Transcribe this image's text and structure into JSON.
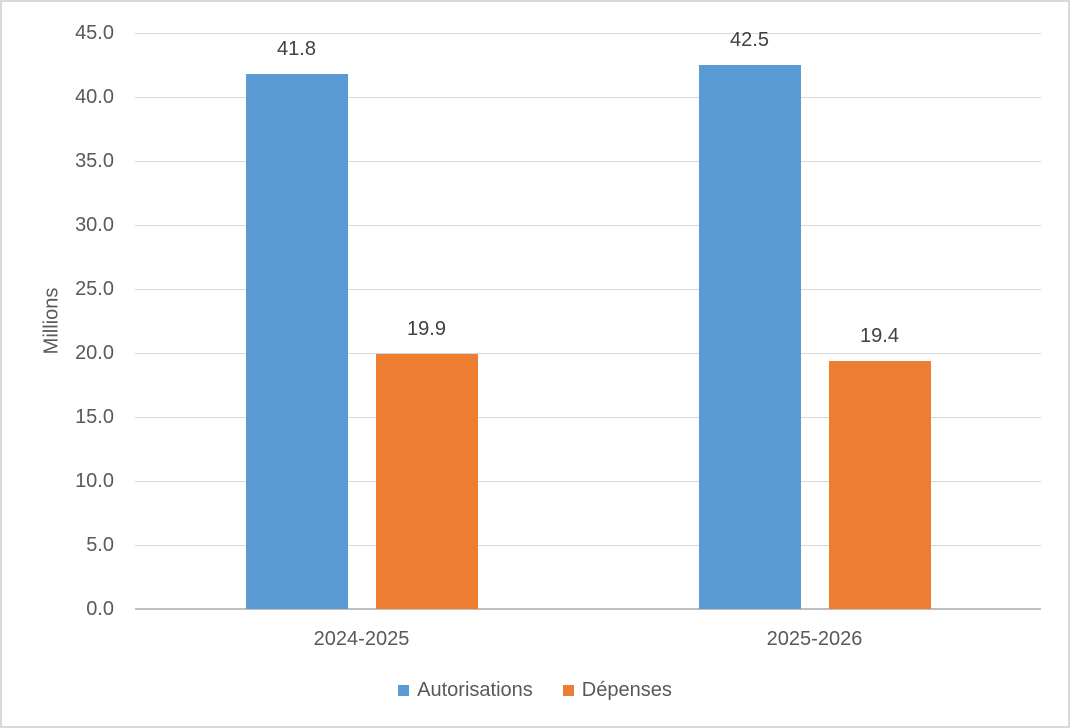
{
  "colors": {
    "series_blue": "#5B9BD5",
    "series_orange": "#ED7D31",
    "gridline": "#D9D9D9",
    "axis_line": "#BFBFBF",
    "tick_text": "#595959",
    "data_label_text": "#404040",
    "frame_border": "#D9D9D9"
  },
  "chart_data": {
    "type": "bar",
    "categories": [
      "2024-2025",
      "2025-2026"
    ],
    "series": [
      {
        "name": "Autorisations",
        "color": "#5B9BD5",
        "values": [
          41.8,
          42.5
        ]
      },
      {
        "name": "Dépenses",
        "color": "#ED7D31",
        "values": [
          19.9,
          19.4
        ]
      }
    ],
    "title": "",
    "xlabel": "",
    "ylabel": "Millions",
    "ylim": [
      0,
      45
    ],
    "ytick_step": 5,
    "ytick_decimals": 1,
    "data_label_decimals": 1,
    "grid": true,
    "legend_position": "bottom"
  }
}
